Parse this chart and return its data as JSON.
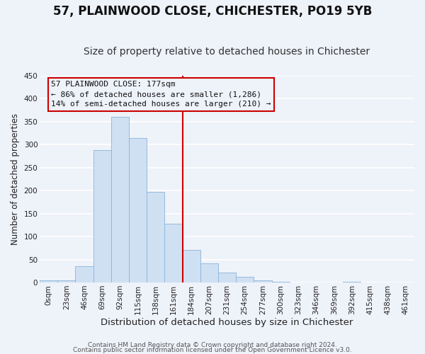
{
  "title": "57, PLAINWOOD CLOSE, CHICHESTER, PO19 5YB",
  "subtitle": "Size of property relative to detached houses in Chichester",
  "xlabel": "Distribution of detached houses by size in Chichester",
  "ylabel": "Number of detached properties",
  "bin_labels": [
    "0sqm",
    "23sqm",
    "46sqm",
    "69sqm",
    "92sqm",
    "115sqm",
    "138sqm",
    "161sqm",
    "184sqm",
    "207sqm",
    "231sqm",
    "254sqm",
    "277sqm",
    "300sqm",
    "323sqm",
    "346sqm",
    "369sqm",
    "392sqm",
    "415sqm",
    "438sqm",
    "461sqm"
  ],
  "bar_values": [
    5,
    5,
    36,
    289,
    360,
    315,
    197,
    128,
    71,
    41,
    22,
    13,
    5,
    2,
    0,
    0,
    0,
    2,
    0,
    0,
    0
  ],
  "bar_color": "#cfe0f3",
  "bar_edge_color": "#8ab4d8",
  "highlight_line_color": "#cc0000",
  "annotation_box_text_line1": "57 PLAINWOOD CLOSE: 177sqm",
  "annotation_box_text_line2": "← 86% of detached houses are smaller (1,286)",
  "annotation_box_text_line3": "14% of semi-detached houses are larger (210) →",
  "annotation_box_edgecolor": "#cc0000",
  "ylim": [
    0,
    450
  ],
  "yticks": [
    0,
    50,
    100,
    150,
    200,
    250,
    300,
    350,
    400,
    450
  ],
  "footer_line1": "Contains HM Land Registry data © Crown copyright and database right 2024.",
  "footer_line2": "Contains public sector information licensed under the Open Government Licence v3.0.",
  "background_color": "#eef2f9",
  "grid_color": "#ffffff",
  "title_fontsize": 12,
  "subtitle_fontsize": 10,
  "xlabel_fontsize": 9.5,
  "ylabel_fontsize": 8.5,
  "tick_fontsize": 7.5,
  "annotation_fontsize": 8,
  "footer_fontsize": 6.5
}
